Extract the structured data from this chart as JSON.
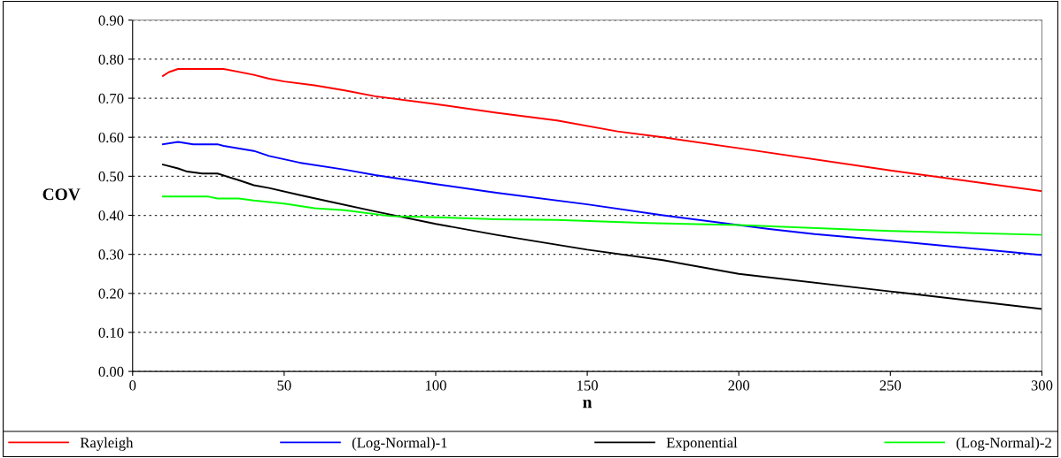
{
  "chart_data": {
    "type": "line",
    "xlabel": "n",
    "ylabel": "COV",
    "xlim": [
      0,
      300
    ],
    "xticks": [
      0,
      50,
      100,
      150,
      200,
      250,
      300
    ],
    "ylim": [
      0,
      0.9
    ],
    "yticks": [
      {
        "value": 0,
        "label": "0.00"
      },
      {
        "value": 0.1,
        "label": "0.10"
      },
      {
        "value": 0.2,
        "label": "0.20"
      },
      {
        "value": 0.3,
        "label": "0.30"
      },
      {
        "value": 0.4,
        "label": "0.40"
      },
      {
        "value": 0.5,
        "label": "0.50"
      },
      {
        "value": 0.6,
        "label": "0.60"
      },
      {
        "value": 0.7,
        "label": "0.70"
      },
      {
        "value": 0.8,
        "label": "0.80"
      },
      {
        "value": 0.9,
        "label": "0.90"
      }
    ],
    "grid": "y",
    "legend": "bottom",
    "marker": "none",
    "line_style": "solid",
    "series": [
      {
        "name": "Rayleigh",
        "color": "#ff0000",
        "x": [
          10,
          12,
          15,
          30,
          40,
          45,
          50,
          60,
          70,
          80,
          100,
          120,
          140,
          160,
          175,
          200,
          250,
          300
        ],
        "values": [
          0.757,
          0.767,
          0.775,
          0.775,
          0.76,
          0.75,
          0.743,
          0.733,
          0.72,
          0.705,
          0.685,
          0.663,
          0.643,
          0.615,
          0.6,
          0.572,
          0.515,
          0.462
        ]
      },
      {
        "name": "(Log-Normal)-1",
        "color": "#0000ff",
        "x": [
          10,
          15,
          20,
          28,
          30,
          40,
          45,
          55,
          70,
          80,
          100,
          120,
          150,
          175,
          210,
          225,
          250,
          300
        ],
        "values": [
          0.582,
          0.588,
          0.582,
          0.582,
          0.578,
          0.565,
          0.552,
          0.535,
          0.517,
          0.503,
          0.48,
          0.458,
          0.428,
          0.4,
          0.365,
          0.352,
          0.335,
          0.298
        ]
      },
      {
        "name": "Exponential",
        "color": "#000000",
        "x": [
          10,
          15,
          18,
          23,
          28,
          35,
          40,
          45,
          55,
          65,
          80,
          100,
          120,
          150,
          175,
          200,
          250,
          300
        ],
        "values": [
          0.53,
          0.52,
          0.512,
          0.507,
          0.507,
          0.49,
          0.477,
          0.47,
          0.452,
          0.435,
          0.41,
          0.378,
          0.35,
          0.312,
          0.285,
          0.25,
          0.205,
          0.16
        ]
      },
      {
        "name": "(Log-Normal)-2",
        "color": "#00ff00",
        "x": [
          10,
          25,
          28,
          35,
          40,
          50,
          60,
          70,
          85,
          100,
          120,
          140,
          170,
          200,
          250,
          300
        ],
        "values": [
          0.448,
          0.448,
          0.443,
          0.443,
          0.438,
          0.43,
          0.418,
          0.413,
          0.398,
          0.395,
          0.39,
          0.388,
          0.38,
          0.375,
          0.36,
          0.35
        ]
      }
    ]
  }
}
